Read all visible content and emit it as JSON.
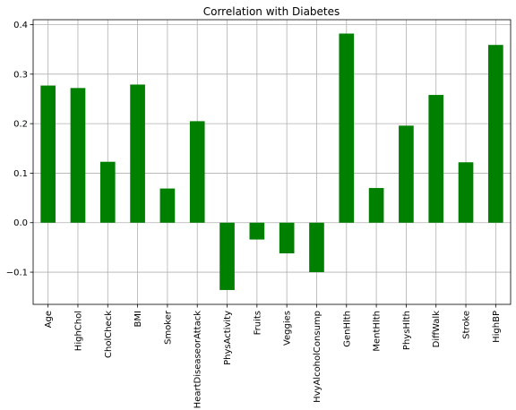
{
  "chart_data": {
    "type": "bar",
    "title": "Correlation with Diabetes",
    "xlabel": "",
    "ylabel": "",
    "categories": [
      "Age",
      "HighChol",
      "CholCheck",
      "BMI",
      "Smoker",
      "HeartDiseaseorAttack",
      "PhysActivity",
      "Fruits",
      "Veggies",
      "HvyAlcoholConsump",
      "GenHlth",
      "MentHlth",
      "PhysHlth",
      "DiffWalk",
      "Stroke",
      "HighBP"
    ],
    "values": [
      0.277,
      0.272,
      0.123,
      0.279,
      0.069,
      0.205,
      -0.136,
      -0.034,
      -0.062,
      -0.1,
      0.382,
      0.07,
      0.196,
      0.258,
      0.122,
      0.359
    ],
    "ylim": [
      -0.165,
      0.41
    ],
    "yticks": [
      -0.1,
      0.0,
      0.1,
      0.2,
      0.3,
      0.4
    ],
    "ytick_labels": [
      "−0.1",
      "0.0",
      "0.1",
      "0.2",
      "0.3",
      "0.4"
    ],
    "bar_color": "#008000",
    "grid": true
  }
}
